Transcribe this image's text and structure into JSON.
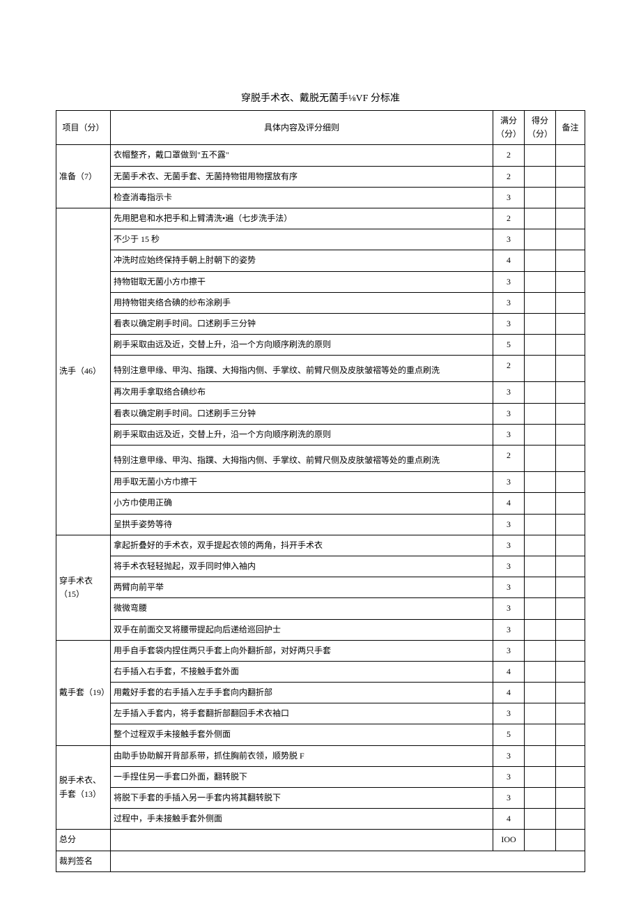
{
  "title": "穿脱手术衣、戴脱无菌手⅛VF 分标准",
  "headers": {
    "item": "项目（分）",
    "detail": "具体内容及评分细则",
    "full": "满分（分）",
    "score": "得分（分）",
    "remark": "备注"
  },
  "sections": [
    {
      "label": "准备（7）",
      "rows": [
        {
          "desc": "衣帽整齐，戴口罩做到\"五不露\"",
          "full": "2"
        },
        {
          "desc": "无菌手术衣、无菌手套、无菌持物钳用物摆放有序",
          "full": "2"
        },
        {
          "desc": "检查消毒指示卡",
          "full": "3"
        }
      ]
    },
    {
      "label": "洗手（46）",
      "rows": [
        {
          "desc": "先用肥皂和水把手和上臂清洗•遍（七步洗手法）",
          "full": "2"
        },
        {
          "desc": "不少于 15 秒",
          "full": "3"
        },
        {
          "desc": "冲洗时应始终保持手朝上肘朝下的姿势",
          "full": "4"
        },
        {
          "desc": "持物钳取无菌小方巾擦干",
          "full": "3"
        },
        {
          "desc": "用持物钳夹络合碘的纱布涂刷手",
          "full": "3"
        },
        {
          "desc": "看表以确定刷手时间。口述刷手三分钟",
          "full": "3"
        },
        {
          "desc": "刷手采取由远及近，交替上升，沿一个方向顺序刷洗的原则",
          "full": "5"
        },
        {
          "desc": "特别注意甲缘、甲沟、指蹼、大拇指内侧、手掌纹、前臂尺侧及皮肤皱褶等处的重点刷洗",
          "full": "2",
          "tall": true
        },
        {
          "desc": "再次用手拿取络合碘纱布",
          "full": "3"
        },
        {
          "desc": "看表以确定刷手时间。口述刷手三分钟",
          "full": "3"
        },
        {
          "desc": "刷手采取由远及近，交替上升，沿一个方向顺序刷洗的原则",
          "full": "3"
        },
        {
          "desc": "特别注意甲缘、甲沟、指蹼、大拇指内侧、手掌纹、前臂尺侧及皮肤皱褶等处的重点刷洗",
          "full": "2",
          "tall": true
        },
        {
          "desc": "用手取无菌小方巾擦干",
          "full": "3"
        },
        {
          "desc": "小方巾使用正确",
          "full": "4"
        },
        {
          "desc": "呈拱手姿势等待",
          "full": "3"
        }
      ]
    },
    {
      "label": "穿手术衣（15）",
      "rows": [
        {
          "desc": "拿起折叠好的手术衣，双手提起衣领的两角，抖开手术衣",
          "full": "3"
        },
        {
          "desc": "将手术衣轻轻抛起，双手同时伸入袖内",
          "full": "3"
        },
        {
          "desc": "两臂向前平举",
          "full": "3"
        },
        {
          "desc": "微微弯腰",
          "full": "3"
        },
        {
          "desc": "双手在前面交叉将腰带提起向后递给巡回护士",
          "full": "3"
        }
      ]
    },
    {
      "label": "戴手套（19）",
      "rows": [
        {
          "desc": "用手自手套袋内捏住两只手套上向外翻折部，对好两只手套",
          "full": "3"
        },
        {
          "desc": "右手插入右手套，不接触手套外面",
          "full": "4"
        },
        {
          "desc": "用戴好手套的右手插入左手手套向内翻折部",
          "full": "4"
        },
        {
          "desc": "左手插入手套内，将手套翻折部翻回手术衣袖口",
          "full": "3"
        },
        {
          "desc": "整个过程双手未接触手套外侧面",
          "full": "5"
        }
      ]
    },
    {
      "label": "脱手术衣、手套（13）",
      "rows": [
        {
          "desc": "由助手协助解开背部系带，抓住胸前衣领，顺势脱 F",
          "full": "3"
        },
        {
          "desc": "一手捏住另一手套口外面，翻转脱下",
          "full": "3"
        },
        {
          "desc": "将脱下手套的手插入另一手套内将其翻转脱下",
          "full": "3"
        },
        {
          "desc": "过程中，手未接触手套外侧面",
          "full": "4"
        }
      ]
    }
  ],
  "footer": {
    "total_label": "总分",
    "total_value": "IOO",
    "sign_label": "裁判签名"
  }
}
